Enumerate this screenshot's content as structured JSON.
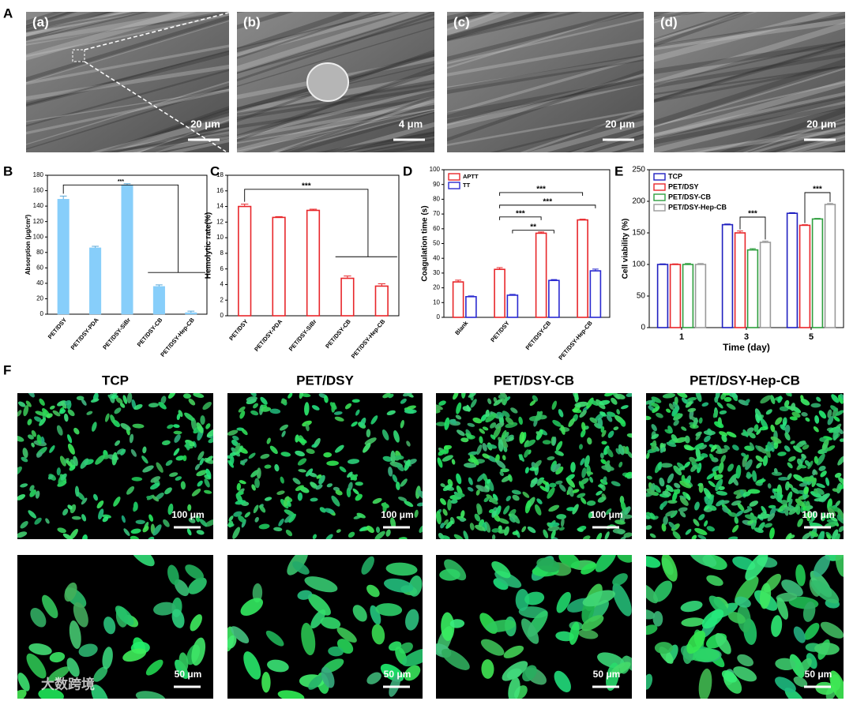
{
  "panel_labels": [
    "A",
    "B",
    "C",
    "D",
    "E",
    "F"
  ],
  "sem_images": [
    {
      "label": "(a)",
      "scale_bar": "20 μm"
    },
    {
      "label": "(b)",
      "scale_bar": "4 μm"
    },
    {
      "label": "(c)",
      "scale_bar": "20 μm"
    },
    {
      "label": "(d)",
      "scale_bar": "20 μm"
    }
  ],
  "chart_data": [
    {
      "type": "bar",
      "ylabel": "Absorption (μg/cm²)",
      "categories": [
        "PET/DSY",
        "PET/DSY-PDA",
        "PET/DSY-SiBr",
        "PET/DSY-CB",
        "PET/DSY-Hep-CB"
      ],
      "values": [
        149,
        86,
        167,
        36,
        2
      ],
      "errors": [
        4,
        2,
        2,
        2,
        2
      ],
      "color": "#87cefa",
      "ylim": [
        0,
        180
      ],
      "yticks": [
        0,
        20,
        40,
        60,
        80,
        100,
        120,
        140,
        160,
        180
      ],
      "annotations": [
        "***"
      ]
    },
    {
      "type": "bar",
      "ylabel": "Hemolytic rate(%)",
      "categories": [
        "PET/DSY",
        "PET/DSY-PDA",
        "PET/DSY-SiBr",
        "PET/DSY-CB",
        "PET/DSY-Hep-CB"
      ],
      "values": [
        14,
        12.6,
        13.5,
        4.8,
        3.8
      ],
      "errors": [
        0.3,
        0.1,
        0.15,
        0.3,
        0.3
      ],
      "color": "#e8262a",
      "hollow": true,
      "ylim": [
        0,
        18
      ],
      "yticks": [
        0,
        2,
        4,
        6,
        8,
        10,
        12,
        14,
        16,
        18
      ],
      "annotations": [
        "***"
      ]
    },
    {
      "type": "bar",
      "ylabel": "Coagulation time (s)",
      "categories": [
        "Blank",
        "PET/DSY",
        "PET/DSY-CB",
        "PET/DSY-Hep-CB"
      ],
      "series": [
        {
          "name": "APTT",
          "color": "#e8262a",
          "values": [
            24,
            32.5,
            57,
            66
          ],
          "errors": [
            1.2,
            1.2,
            0.8,
            0.5
          ]
        },
        {
          "name": "TT",
          "color": "#2a2ad0",
          "values": [
            14,
            15,
            25,
            31.5
          ],
          "errors": [
            0.5,
            0.6,
            0.6,
            1.2
          ]
        }
      ],
      "hollow": true,
      "ylim": [
        0,
        100
      ],
      "yticks": [
        0,
        10,
        20,
        30,
        40,
        50,
        60,
        70,
        80,
        90,
        100
      ],
      "legend": "upper left",
      "annotations": [
        "***",
        "***",
        "***",
        "**"
      ]
    },
    {
      "type": "bar",
      "ylabel": "Cell viability (%)",
      "xlabel": "Time (day)",
      "categories": [
        "1",
        "3",
        "5"
      ],
      "series": [
        {
          "name": "TCP",
          "color": "#2020c0",
          "values": [
            100,
            163,
            181
          ],
          "errors": [
            1,
            1,
            1
          ]
        },
        {
          "name": "PET/DSY",
          "color": "#e8262a",
          "values": [
            100,
            150,
            162
          ],
          "errors": [
            1,
            3,
            1
          ]
        },
        {
          "name": "PET/DSY-CB",
          "color": "#2e9e3e",
          "values": [
            100,
            123,
            172
          ],
          "errors": [
            1.5,
            2,
            1
          ]
        },
        {
          "name": "PET/DSY-Hep-CB",
          "color": "#9a9a9a",
          "values": [
            100,
            135,
            195
          ],
          "errors": [
            1.5,
            2,
            1.5
          ]
        }
      ],
      "hollow": true,
      "ylim": [
        0,
        250
      ],
      "yticks": [
        0,
        50,
        100,
        150,
        200,
        250
      ],
      "legend": "upper left",
      "annotations": [
        "***",
        "***"
      ]
    }
  ],
  "fluorescence": {
    "groups": [
      "TCP",
      "PET/DSY",
      "PET/DSY-CB",
      "PET/DSY-Hep-CB"
    ],
    "scale_bars": [
      "100 μm",
      "50 μm"
    ]
  },
  "watermark": "大数跨境"
}
